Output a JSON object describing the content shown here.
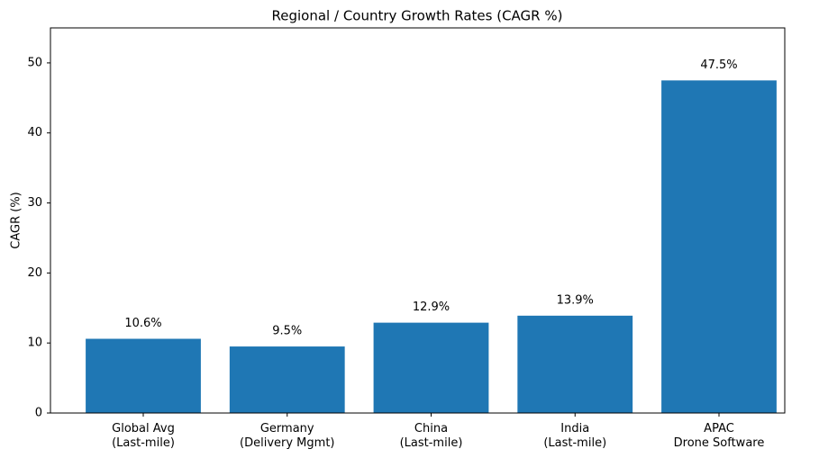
{
  "chart_data": {
    "type": "bar",
    "title": "Regional / Country Growth Rates (CAGR %)",
    "y_label": "CAGR (%)",
    "categories": [
      "Global Avg\n(Last-mile)",
      "Germany\n(Delivery Mgmt)",
      "China\n(Last-mile)",
      "India\n(Last-mile)",
      "APAC\nDrone Software"
    ],
    "values": [
      10.6,
      9.5,
      12.9,
      13.9,
      47.5
    ],
    "value_labels": [
      "10.6%",
      "9.5%",
      "12.9%",
      "13.9%",
      "47.5%"
    ],
    "color": "#1f77b4",
    "ylim": [
      0,
      55
    ],
    "yticks": [
      0,
      10,
      20,
      30,
      40,
      50
    ],
    "grid": false
  }
}
